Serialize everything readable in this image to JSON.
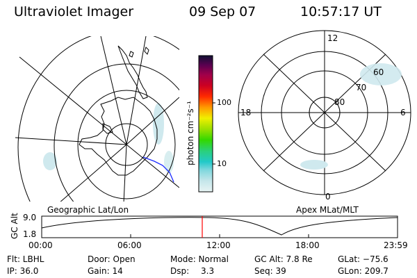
{
  "header": {
    "instrument": "Ultraviolet Imager",
    "date": "09 Sep 07",
    "time": "10:57:17 UT"
  },
  "geo_panel": {
    "label": "Geographic Lat/Lon"
  },
  "mag_panel": {
    "label": "Apex MLat/MLT",
    "mlt_labels": {
      "top": "12",
      "left": "18",
      "right": "6",
      "bottom": "0"
    },
    "lat_labels": [
      "80",
      "70",
      "60"
    ]
  },
  "colorbar": {
    "units": "photon cm⁻²s⁻¹",
    "ticks": [
      "100",
      "10"
    ]
  },
  "timeline": {
    "ylabel": "GC Alt",
    "ytick_top": "9.0",
    "ytick_bottom": "1.8",
    "xticks": [
      "00:00",
      "06:00",
      "12:00",
      "18:00",
      "23:59"
    ]
  },
  "info": {
    "flt": "Flt: LBHL",
    "ip": "IP: 36.0",
    "door": "Door: Open",
    "gain": "Gain: 14",
    "mode": "Mode: Normal",
    "dsp_label": "Dsp:",
    "dsp_value": "3.3",
    "gc_alt": "GC Alt: 7.8 Re",
    "seq": "Seq: 39",
    "glat": "GLat: −75.6",
    "glon": "GLon: 209.7"
  },
  "colors": {
    "marker": "#ff0000",
    "coast_blue": "#1a2aff",
    "aurora": "#cfe9ee"
  }
}
